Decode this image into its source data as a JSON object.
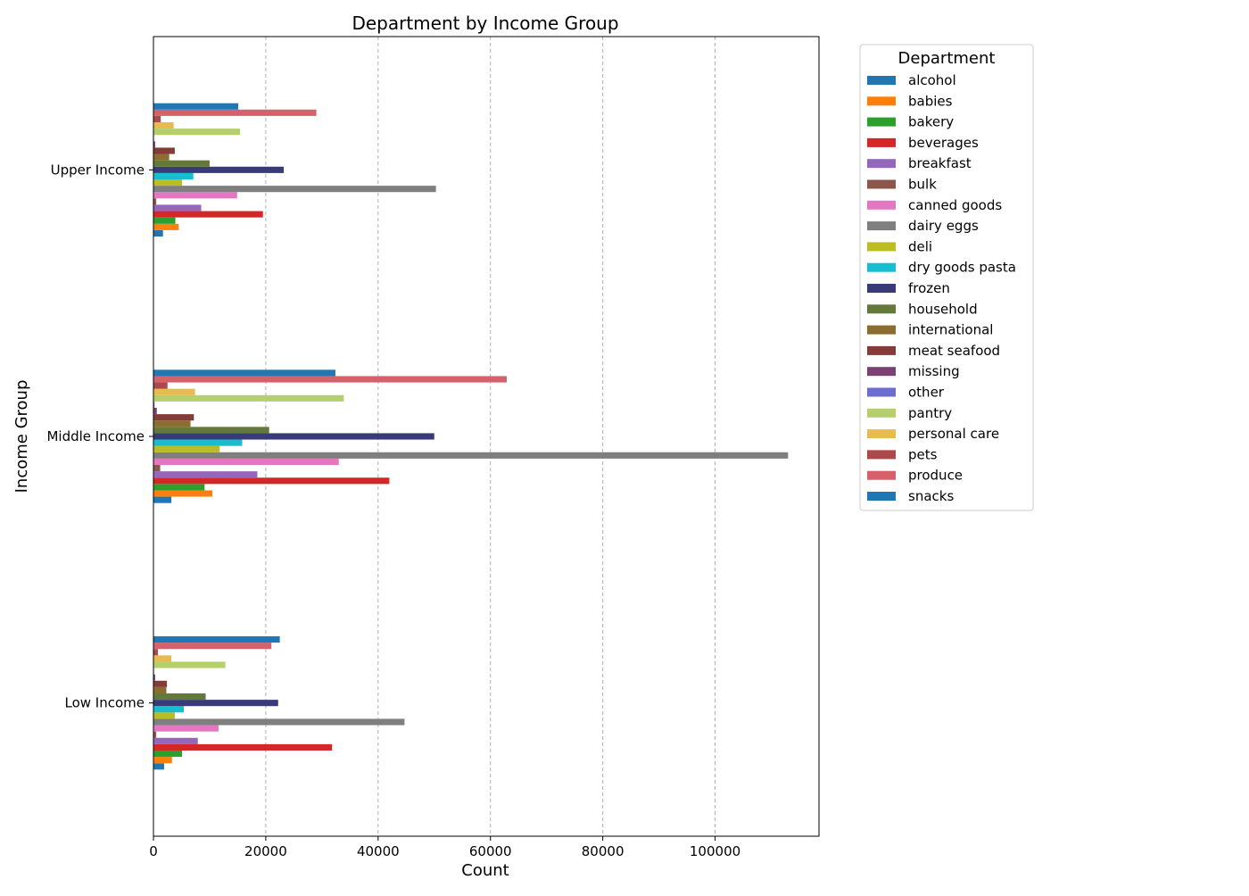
{
  "chart_data": {
    "type": "bar",
    "orientation": "horizontal",
    "title": "Department by Income Group",
    "xlabel": "Count",
    "ylabel": "Income Group",
    "xlim": [
      0,
      118500
    ],
    "xticks": [
      0,
      20000,
      40000,
      60000,
      80000,
      100000
    ],
    "grid": "x-dashed",
    "legend_title": "Department",
    "legend_placement": "outside-right",
    "categories": [
      "Low Income",
      "Middle Income",
      "Upper Income"
    ],
    "series": [
      {
        "name": "alcohol",
        "color": "#1f77b4",
        "values": [
          1900,
          3200,
          1700
        ]
      },
      {
        "name": "babies",
        "color": "#ff7f0e",
        "values": [
          3300,
          10500,
          4500
        ]
      },
      {
        "name": "bakery",
        "color": "#2ca02c",
        "values": [
          5100,
          9100,
          3900
        ]
      },
      {
        "name": "beverages",
        "color": "#d62728",
        "values": [
          31800,
          42000,
          19500
        ]
      },
      {
        "name": "breakfast",
        "color": "#9467bd",
        "values": [
          7900,
          18500,
          8500
        ]
      },
      {
        "name": "bulk",
        "color": "#8c564b",
        "values": [
          500,
          1200,
          500
        ]
      },
      {
        "name": "canned goods",
        "color": "#e377c2",
        "values": [
          11600,
          33000,
          14900
        ]
      },
      {
        "name": "dairy eggs",
        "color": "#7f7f7f",
        "values": [
          44700,
          113000,
          50300
        ]
      },
      {
        "name": "deli",
        "color": "#bcbd22",
        "values": [
          3800,
          11800,
          5100
        ]
      },
      {
        "name": "dry goods pasta",
        "color": "#17becf",
        "values": [
          5400,
          15800,
          7100
        ]
      },
      {
        "name": "frozen",
        "color": "#393b79",
        "values": [
          22200,
          50000,
          23200
        ]
      },
      {
        "name": "household",
        "color": "#637939",
        "values": [
          9300,
          20600,
          10000
        ]
      },
      {
        "name": "international",
        "color": "#8c6d31",
        "values": [
          2300,
          6600,
          2800
        ]
      },
      {
        "name": "meat seafood",
        "color": "#843c39",
        "values": [
          2400,
          7200,
          3800
        ]
      },
      {
        "name": "missing",
        "color": "#7b4173",
        "values": [
          300,
          600,
          300
        ]
      },
      {
        "name": "other",
        "color": "#6b6ecf",
        "values": [
          100,
          200,
          100
        ]
      },
      {
        "name": "pantry",
        "color": "#b5cf6b",
        "values": [
          12800,
          33900,
          15400
        ]
      },
      {
        "name": "personal care",
        "color": "#e7ba52",
        "values": [
          3200,
          7400,
          3600
        ]
      },
      {
        "name": "pets",
        "color": "#ad494a",
        "values": [
          800,
          2500,
          1300
        ]
      },
      {
        "name": "produce",
        "color": "#d6616b",
        "values": [
          21000,
          62900,
          29000
        ]
      },
      {
        "name": "snacks",
        "color": "#1f77b4",
        "values": [
          22500,
          32400,
          15100
        ]
      }
    ]
  }
}
